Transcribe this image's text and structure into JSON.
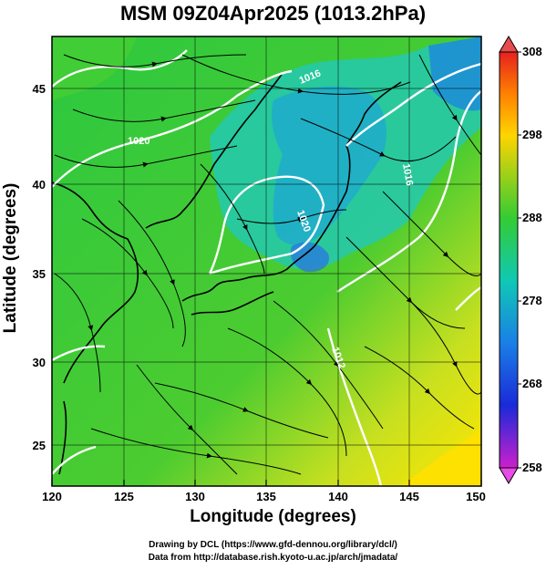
{
  "title": "MSM 09Z04Apr2025 (1013.2hPa)",
  "x_axis_label": "Longitude (degrees)",
  "y_axis_label": "Latitude  (degrees)",
  "x_ticks": [
    "120",
    "125",
    "130",
    "135",
    "140",
    "145",
    "150"
  ],
  "y_ticks": [
    "25",
    "30",
    "35",
    "40",
    "45"
  ],
  "colorbar_ticks": [
    "308",
    "298",
    "288",
    "278",
    "268",
    "258"
  ],
  "contour_labels": [
    "1016",
    "1020",
    "1020",
    "1016",
    "1012"
  ],
  "credit_line1": "Drawing by DCL (https://www.gfd-dennou.org/library/dcl/)",
  "credit_line2": "Data from http://database.rish.kyoto-u.ac.jp/arch/jmadata/",
  "map_extent": {
    "lon": [
      120,
      150
    ],
    "lat": [
      22.5,
      47.5
    ]
  },
  "colorbar_range": [
    258,
    308
  ],
  "colors": {
    "warm": "#ffd400",
    "mid": "#33cc33",
    "cool": "#1a7fe6",
    "hot_cap": "#e64c4c",
    "cold_cap": "#e64ce6",
    "isobar": "#ffffff",
    "streamline": "#000000"
  }
}
